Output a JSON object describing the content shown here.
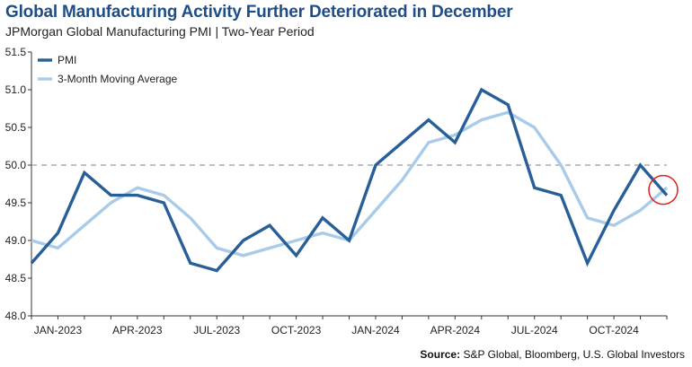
{
  "title": "Global Manufacturing Activity Further Deteriorated in December",
  "subtitle": "JPMorgan Global Manufacturing PMI | Two-Year  Period",
  "source_label": "Source:",
  "source_text": "S&P Global, Bloomberg, U.S. Global Investors",
  "colors": {
    "pmi": "#285f99",
    "moving_average": "#a9cbea",
    "reference_line": "#999999",
    "highlight_circle": "#e02020",
    "title": "#1f4e86"
  },
  "chart_data": {
    "type": "line",
    "title": "Global Manufacturing Activity Further Deteriorated in December",
    "subtitle": "JPMorgan Global Manufacturing PMI | Two-Year  Period",
    "x": [
      "2022-12",
      "2023-01",
      "2023-02",
      "2023-03",
      "2023-04",
      "2023-05",
      "2023-06",
      "2023-07",
      "2023-08",
      "2023-09",
      "2023-10",
      "2023-11",
      "2023-12",
      "2024-01",
      "2024-02",
      "2024-03",
      "2024-04",
      "2024-05",
      "2024-06",
      "2024-07",
      "2024-08",
      "2024-09",
      "2024-10",
      "2024-11",
      "2024-12"
    ],
    "x_tick_labels": [
      "JAN-2023",
      "APR-2023",
      "JUL-2023",
      "OCT-2023",
      "JAN-2024",
      "APR-2024",
      "JUL-2024",
      "OCT-2024"
    ],
    "x_tick_indices": [
      1,
      4,
      7,
      10,
      13,
      16,
      19,
      22
    ],
    "series": [
      {
        "name": "PMI",
        "values": [
          48.7,
          49.1,
          49.9,
          49.6,
          49.6,
          49.5,
          48.7,
          48.6,
          49.0,
          49.2,
          48.8,
          49.3,
          49.0,
          50.0,
          50.3,
          50.6,
          50.3,
          51.0,
          50.8,
          49.7,
          49.6,
          48.7,
          49.4,
          50.0,
          49.6
        ]
      },
      {
        "name": "3-Month Moving Average",
        "values": [
          49.0,
          48.9,
          49.2,
          49.5,
          49.7,
          49.6,
          49.3,
          48.9,
          48.8,
          48.9,
          49.0,
          49.1,
          49.0,
          49.4,
          49.8,
          50.3,
          50.4,
          50.6,
          50.7,
          50.5,
          50.0,
          49.3,
          49.2,
          49.4,
          49.7
        ]
      }
    ],
    "ylim": [
      48.0,
      51.5
    ],
    "y_ticks": [
      "51.5",
      "51.0",
      "50.5",
      "50.0",
      "49.5",
      "49.0",
      "48.5",
      "48.0"
    ],
    "reference_line": 50.0,
    "highlight_point": {
      "series": "PMI",
      "x": "2024-12"
    },
    "legend_position": "top-left",
    "xlabel": "",
    "ylabel": "",
    "grid": false
  }
}
